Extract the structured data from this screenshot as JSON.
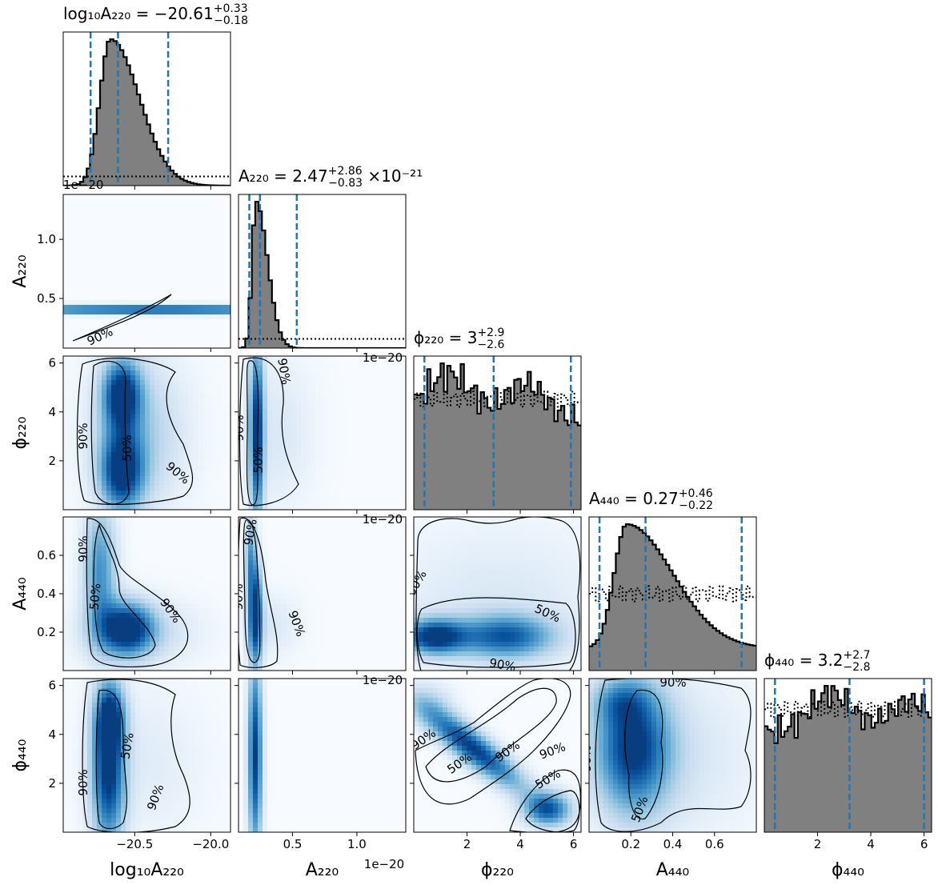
{
  "chart_data": {
    "type": "corner",
    "parameters": [
      {
        "label": "log₁₀A₂₂₀",
        "range": [
          -20.97,
          -19.87
        ],
        "ticks": [
          {
            "v": -20.5,
            "t": "−20.5"
          },
          {
            "v": -20.0,
            "t": "−20.0"
          }
        ],
        "title": "log₁₀A₂₂₀ = −20.61",
        "title_sup": "+0.33",
        "title_sub": "−0.18",
        "title_suffix": "",
        "quantiles": [
          -20.79,
          -20.61,
          -20.28
        ],
        "offset_text": "1e−20"
      },
      {
        "label": "A₂₂₀",
        "range": [
          0.08,
          1.38
        ],
        "ticks": [
          {
            "v": 0.5,
            "t": "0.5"
          },
          {
            "v": 1.0,
            "t": "1.0"
          }
        ],
        "title": "A₂₂₀ = 2.47",
        "title_sup": "+2.86",
        "title_sub": "−0.83",
        "title_suffix": "×10⁻²¹",
        "quantiles": [
          0.164,
          0.247,
          0.533
        ],
        "offset_text": "1e−20"
      },
      {
        "label": "ϕ₂₂₀",
        "range": [
          0.0,
          6.283
        ],
        "ticks": [
          {
            "v": 2,
            "t": "2"
          },
          {
            "v": 4,
            "t": "4"
          },
          {
            "v": 6,
            "t": "6"
          }
        ],
        "title": "ϕ₂₂₀ = 3",
        "title_sup": "+2.9",
        "title_sub": "−2.6",
        "title_suffix": "",
        "quantiles": [
          0.4,
          3.0,
          5.9
        ],
        "offset_text": ""
      },
      {
        "label": "A₄₄₀",
        "range": [
          0.0,
          0.8
        ],
        "ticks": [
          {
            "v": 0.2,
            "t": "0.2"
          },
          {
            "v": 0.4,
            "t": "0.4"
          },
          {
            "v": 0.6,
            "t": "0.6"
          }
        ],
        "title": "A₄₄₀ = 0.27",
        "title_sup": "+0.46",
        "title_sub": "−0.22",
        "title_suffix": "",
        "quantiles": [
          0.05,
          0.27,
          0.73
        ],
        "offset_text": ""
      },
      {
        "label": "ϕ₄₄₀",
        "range": [
          0.0,
          6.283
        ],
        "ticks": [
          {
            "v": 2,
            "t": "2"
          },
          {
            "v": 4,
            "t": "4"
          },
          {
            "v": 6,
            "t": "6"
          }
        ],
        "title": "ϕ₄₄₀ = 3.2",
        "title_sup": "+2.7",
        "title_sub": "−2.8",
        "title_suffix": "",
        "quantiles": [
          0.4,
          3.2,
          6.0
        ],
        "offset_text": ""
      }
    ],
    "y_ticks": [
      null,
      [
        {
          "v": 0.5,
          "t": "0.5"
        },
        {
          "v": 1.0,
          "t": "1.0"
        }
      ],
      [
        {
          "v": 2,
          "t": "2"
        },
        {
          "v": 4,
          "t": "4"
        },
        {
          "v": 6,
          "t": "6"
        }
      ],
      [
        {
          "v": 0.2,
          "t": "0.2"
        },
        {
          "v": 0.4,
          "t": "0.4"
        },
        {
          "v": 0.6,
          "t": "0.6"
        }
      ],
      [
        {
          "v": 2,
          "t": "2"
        },
        {
          "v": 4,
          "t": "4"
        },
        {
          "v": 6,
          "t": "6"
        }
      ]
    ],
    "hist_bins": 50,
    "histograms": [
      {
        "type": "skewed",
        "mode": -20.66,
        "sl": 0.07,
        "sr": 0.19,
        "dotted_level": 0.06,
        "floor": 0.0
      },
      {
        "type": "skewed",
        "mode": 0.215,
        "sl": 0.03,
        "sr": 0.09,
        "dotted_level": 0.06,
        "floor": 0.0
      },
      {
        "type": "flat",
        "bumps": [
          [
            1.3,
            0.9,
            0.25
          ],
          [
            4.2,
            0.7,
            0.2
          ]
        ],
        "dotted_level": 0.72,
        "floor": 0.5
      },
      {
        "type": "skewed",
        "mode": 0.18,
        "sl": 0.06,
        "sr": 0.22,
        "dotted_level": 0.5,
        "floor": 0.18
      },
      {
        "type": "flat",
        "bumps": [
          [
            2.5,
            0.8,
            0.25
          ],
          [
            5.5,
            0.8,
            0.2
          ]
        ],
        "dotted_level": 0.8,
        "floor": 0.62
      }
    ],
    "contour_levels": [
      "50%",
      "90%"
    ],
    "colormap": "Blues",
    "hist_fill": "#808080",
    "quantile_color": "#1f77b4",
    "line_color": "#000000"
  }
}
